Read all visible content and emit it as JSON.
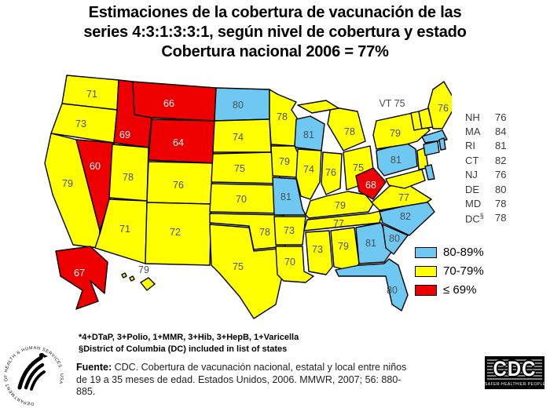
{
  "title": {
    "line1": "Estimaciones de la cobertura de vacunación de las",
    "line2": "series 4:3:1:3:3:1, según nivel de cobertura y estado",
    "line3": "Cobertura nacional 2006 = 77%"
  },
  "legend": {
    "items": [
      {
        "label": "80-89%",
        "color": "#6FC8F2"
      },
      {
        "label": "70-79%",
        "color": "#FFFF00"
      },
      {
        "label": "≤ 69%",
        "color": "#EE0000"
      }
    ]
  },
  "map": {
    "vt_annotation": "VT 75"
  },
  "side_list": {
    "rows": [
      {
        "label": "NH",
        "value": "76"
      },
      {
        "label": "MA",
        "value": "84"
      },
      {
        "label": "RI",
        "value": "81"
      },
      {
        "label": "CT",
        "value": "82"
      },
      {
        "label": "NJ",
        "value": "76"
      },
      {
        "label": "DE",
        "value": "80"
      },
      {
        "label": "MD",
        "value": "78"
      },
      {
        "label": "DC§",
        "value": "78"
      }
    ]
  },
  "footnotes": {
    "line1": "*4+DTaP, 3+Polio, 1+MMR, 3+Hib, 3+HepB, 1+Varicella",
    "line2": "§District of Columbia (DC) included in list of states"
  },
  "source": {
    "label": "Fuente:",
    "text": " CDC. Cobertura de vacunación nacional, estatal y local entre niños de 19 a 35 meses de edad. Estados Unidos, 2006. MMWR, 2007; 56: 880-885."
  },
  "logos": {
    "cdc_acronym": "CDC",
    "cdc_tagline": "SAFER·HEALTHIER·PEOPLE™",
    "hhs_ring_text": "DEPARTMENT OF HEALTH & HUMAN SERVICES · USA"
  },
  "chart_data": {
    "type": "heatmap",
    "subtype": "us-state-choropleth",
    "title": "Estimaciones de la cobertura de vacunación de las series 4:3:1:3:3:1, según nivel de cobertura y estado",
    "national_coverage_2006_pct": 77,
    "legend_position": "right-bottom",
    "bins": [
      {
        "range": "80-89%",
        "color": "#6FC8F2"
      },
      {
        "range": "70-79%",
        "color": "#FFFF00"
      },
      {
        "range": "≤ 69%",
        "color": "#EE0000"
      }
    ],
    "states": [
      {
        "abbr": "WA",
        "value": 71
      },
      {
        "abbr": "OR",
        "value": 73
      },
      {
        "abbr": "CA",
        "value": 79
      },
      {
        "abbr": "NV",
        "value": 60
      },
      {
        "abbr": "ID",
        "value": 69
      },
      {
        "abbr": "MT",
        "value": 66
      },
      {
        "abbr": "WY",
        "value": 64
      },
      {
        "abbr": "UT",
        "value": 78
      },
      {
        "abbr": "CO",
        "value": 76
      },
      {
        "abbr": "AZ",
        "value": 71
      },
      {
        "abbr": "NM",
        "value": 72
      },
      {
        "abbr": "ND",
        "value": 80
      },
      {
        "abbr": "SD",
        "value": 74
      },
      {
        "abbr": "NE",
        "value": 75
      },
      {
        "abbr": "KS",
        "value": 70
      },
      {
        "abbr": "OK",
        "value": 78
      },
      {
        "abbr": "TX",
        "value": 75
      },
      {
        "abbr": "MN",
        "value": 78
      },
      {
        "abbr": "IA",
        "value": 79
      },
      {
        "abbr": "MO",
        "value": 81
      },
      {
        "abbr": "AR",
        "value": 73
      },
      {
        "abbr": "LA",
        "value": 70
      },
      {
        "abbr": "WI",
        "value": 81
      },
      {
        "abbr": "IL",
        "value": 74
      },
      {
        "abbr": "IN",
        "value": 76
      },
      {
        "abbr": "MI",
        "value": 78
      },
      {
        "abbr": "OH",
        "value": 75
      },
      {
        "abbr": "KY",
        "value": 79
      },
      {
        "abbr": "TN",
        "value": 77
      },
      {
        "abbr": "MS",
        "value": 73
      },
      {
        "abbr": "AL",
        "value": 79
      },
      {
        "abbr": "GA",
        "value": 81
      },
      {
        "abbr": "FL",
        "value": 80
      },
      {
        "abbr": "SC",
        "value": 80
      },
      {
        "abbr": "NC",
        "value": 82
      },
      {
        "abbr": "VA",
        "value": 77
      },
      {
        "abbr": "PA",
        "value": 81
      },
      {
        "abbr": "NY",
        "value": 79
      },
      {
        "abbr": "NJ",
        "value": 76
      },
      {
        "abbr": "MD",
        "value": 78
      },
      {
        "abbr": "DE",
        "value": 80
      },
      {
        "abbr": "MA",
        "value": 84
      },
      {
        "abbr": "CT",
        "value": 82
      },
      {
        "abbr": "RI",
        "value": 81
      },
      {
        "abbr": "VT",
        "value": 75
      },
      {
        "abbr": "NH",
        "value": 76
      },
      {
        "abbr": "ME",
        "value": 76
      },
      {
        "abbr": "WV",
        "value": 68
      },
      {
        "abbr": "DC",
        "value": 78
      },
      {
        "abbr": "AK",
        "value": 67
      },
      {
        "abbr": "HI",
        "value": 79
      }
    ]
  }
}
